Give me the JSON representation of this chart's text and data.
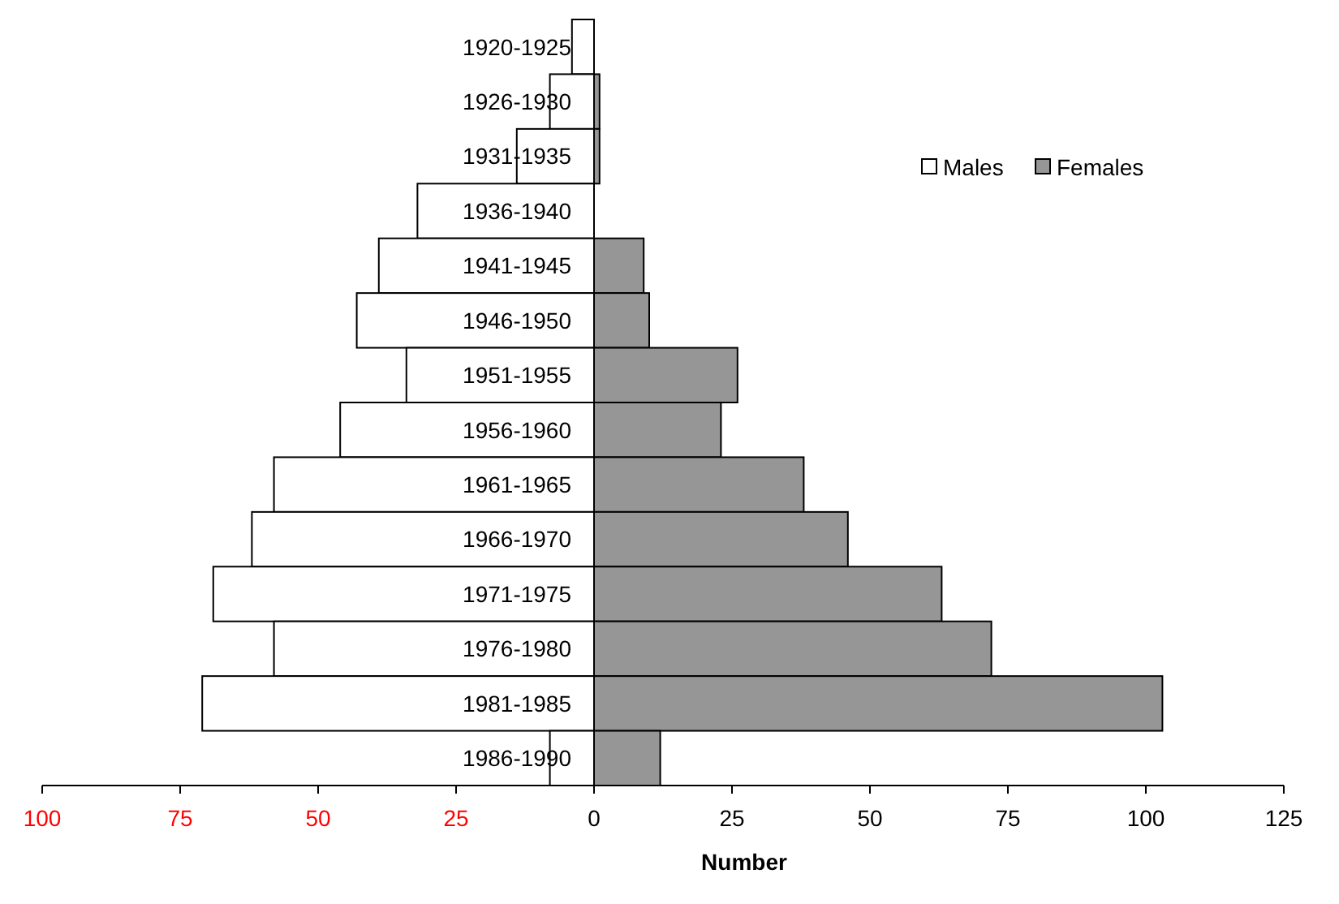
{
  "chart_data": {
    "type": "bar",
    "orientation": "horizontal",
    "stacked": true,
    "xlabel": "Number",
    "categories": [
      "1920-1925",
      "1926-1930",
      "1931-1935",
      "1936-1940",
      "1941-1945",
      "1946-1950",
      "1951-1955",
      "1956-1960",
      "1961-1965",
      "1966-1970",
      "1971-1975",
      "1976-1980",
      "1981-1985",
      "1986-1990"
    ],
    "series": [
      {
        "name": "Males",
        "color": "#ffffff",
        "values": [
          -4,
          -8,
          -14,
          -32,
          -39,
          -43,
          -34,
          -46,
          -58,
          -62,
          -69,
          -58,
          -71,
          -8
        ]
      },
      {
        "name": "Females",
        "color": "#969696",
        "values": [
          0,
          1,
          1,
          0,
          9,
          10,
          26,
          23,
          38,
          46,
          63,
          72,
          103,
          12
        ]
      }
    ],
    "xlim": [
      -100,
      125
    ],
    "xticks": [
      {
        "value": -100,
        "label": "100"
      },
      {
        "value": -75,
        "label": "75"
      },
      {
        "value": -50,
        "label": "50"
      },
      {
        "value": -25,
        "label": "25"
      },
      0,
      25,
      50,
      75,
      100,
      125
    ],
    "legend": "top right",
    "grid": false
  }
}
